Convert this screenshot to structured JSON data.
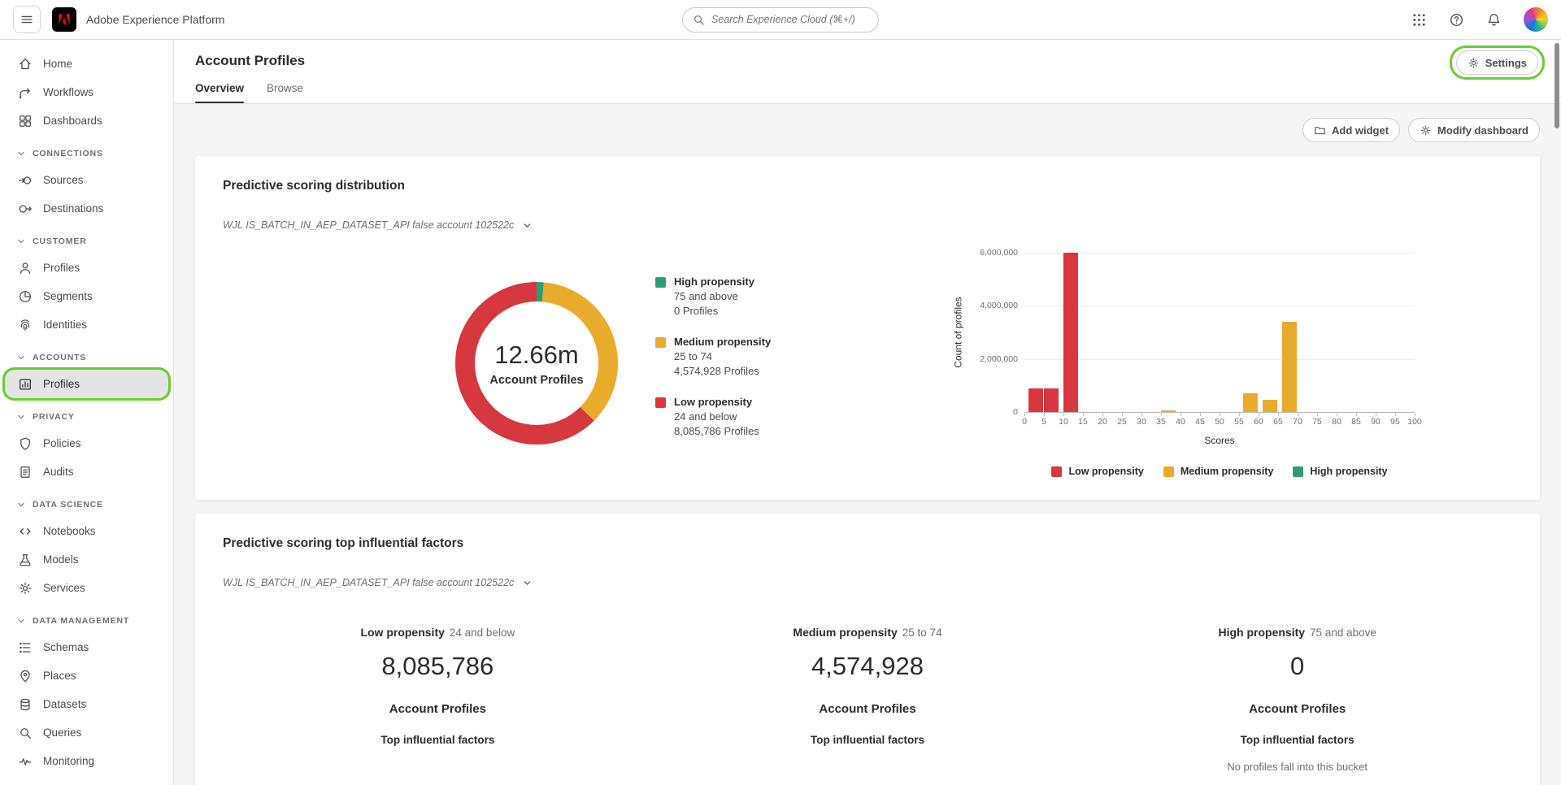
{
  "topbar": {
    "app_title": "Adobe Experience Platform",
    "search_placeholder": "Search Experience Cloud (⌘+/)"
  },
  "sidebar": {
    "groups": [
      {
        "label": "",
        "items": [
          {
            "label": "Home"
          },
          {
            "label": "Workflows"
          },
          {
            "label": "Dashboards"
          }
        ]
      },
      {
        "label": "CONNECTIONS",
        "items": [
          {
            "label": "Sources"
          },
          {
            "label": "Destinations"
          }
        ]
      },
      {
        "label": "CUSTOMER",
        "items": [
          {
            "label": "Profiles"
          },
          {
            "label": "Segments"
          },
          {
            "label": "Identities"
          }
        ]
      },
      {
        "label": "ACCOUNTS",
        "items": [
          {
            "label": "Profiles",
            "selected": true
          }
        ]
      },
      {
        "label": "PRIVACY",
        "items": [
          {
            "label": "Policies"
          },
          {
            "label": "Audits"
          }
        ]
      },
      {
        "label": "DATA SCIENCE",
        "items": [
          {
            "label": "Notebooks"
          },
          {
            "label": "Models"
          },
          {
            "label": "Services"
          }
        ]
      },
      {
        "label": "DATA MANAGEMENT",
        "items": [
          {
            "label": "Schemas"
          },
          {
            "label": "Places"
          },
          {
            "label": "Datasets"
          },
          {
            "label": "Queries"
          },
          {
            "label": "Monitoring"
          }
        ]
      }
    ]
  },
  "header": {
    "title": "Account Profiles",
    "tabs": [
      {
        "label": "Overview",
        "active": true
      },
      {
        "label": "Browse",
        "active": false
      }
    ],
    "settings_label": "Settings"
  },
  "toolbar": {
    "add_widget_label": "Add widget",
    "modify_dashboard_label": "Modify dashboard"
  },
  "scoring_card": {
    "title": "Predictive scoring distribution",
    "dataset_selector": "WJL IS_BATCH_IN_AEP_DATASET_API false account 102522c",
    "donut_center_value": "12.66m",
    "donut_center_label": "Account Profiles",
    "legend": [
      {
        "name": "High propensity",
        "range": "75 and above",
        "profiles": "0 Profiles",
        "color": "#2d9d78"
      },
      {
        "name": "Medium propensity",
        "range": "25 to 74",
        "profiles": "4,574,928 Profiles",
        "color": "#e9ab2b"
      },
      {
        "name": "Low propensity",
        "range": "24 and below",
        "profiles": "8,085,786 Profiles",
        "color": "#d7373f"
      }
    ]
  },
  "factors_card": {
    "title": "Predictive scoring top influential factors",
    "dataset_selector": "WJL IS_BATCH_IN_AEP_DATASET_API false account 102522c",
    "columns": [
      {
        "name": "Low propensity",
        "range": "24 and below",
        "value": "8,085,786",
        "entity": "Account Profiles",
        "subtitle": "Top influential factors"
      },
      {
        "name": "Medium propensity",
        "range": "25 to 74",
        "value": "4,574,928",
        "entity": "Account Profiles",
        "subtitle": "Top influential factors"
      },
      {
        "name": "High propensity",
        "range": "75 and above",
        "value": "0",
        "entity": "Account Profiles",
        "subtitle": "Top influential factors",
        "note": "No profiles fall into this bucket"
      }
    ]
  },
  "chart_data": [
    {
      "type": "pie",
      "title": "Predictive scoring distribution",
      "labels": [
        "Low propensity (24 and below)",
        "Medium propensity (25 to 74)",
        "High propensity (75 and above)"
      ],
      "values": [
        8085786,
        4574928,
        0
      ],
      "colors": [
        "#d7373f",
        "#e9ab2b",
        "#2d9d78"
      ],
      "center_value": "12.66m",
      "center_label": "Account Profiles",
      "donut": true
    },
    {
      "type": "bar",
      "title": "Count of profiles by predictive score",
      "xlabel": "Scores",
      "ylabel": "Count of profiles",
      "xlim": [
        0,
        100
      ],
      "ylim": [
        0,
        6000000
      ],
      "x_ticks": [
        0,
        5,
        10,
        15,
        20,
        25,
        30,
        35,
        40,
        45,
        50,
        55,
        60,
        65,
        70,
        75,
        80,
        85,
        90,
        95,
        100
      ],
      "y_ticks": [
        0,
        2000000,
        4000000,
        6000000
      ],
      "y_tick_labels": [
        "0",
        "2,000,000",
        "4,000,000",
        "6,000,000"
      ],
      "bars": [
        {
          "score": 1,
          "value": 900000,
          "series": "Low propensity"
        },
        {
          "score": 5,
          "value": 900000,
          "series": "Low propensity"
        },
        {
          "score": 10,
          "value": 6000000,
          "series": "Low propensity"
        },
        {
          "score": 35,
          "value": 60000,
          "series": "Medium propensity"
        },
        {
          "score": 56,
          "value": 700000,
          "series": "Medium propensity"
        },
        {
          "score": 61,
          "value": 450000,
          "series": "Medium propensity"
        },
        {
          "score": 66,
          "value": 3400000,
          "series": "Medium propensity"
        }
      ],
      "series_colors": {
        "Low propensity": "#d7373f",
        "Medium propensity": "#e9ab2b",
        "High propensity": "#2d9d78"
      },
      "legend": [
        "Low propensity",
        "Medium propensity",
        "High propensity"
      ],
      "legend_position": "bottom",
      "grid": true
    }
  ],
  "annotations": {
    "highlight_color": "#6bcc2f",
    "highlighted": [
      "sidebar-item-accounts-profiles",
      "settings-button"
    ]
  }
}
